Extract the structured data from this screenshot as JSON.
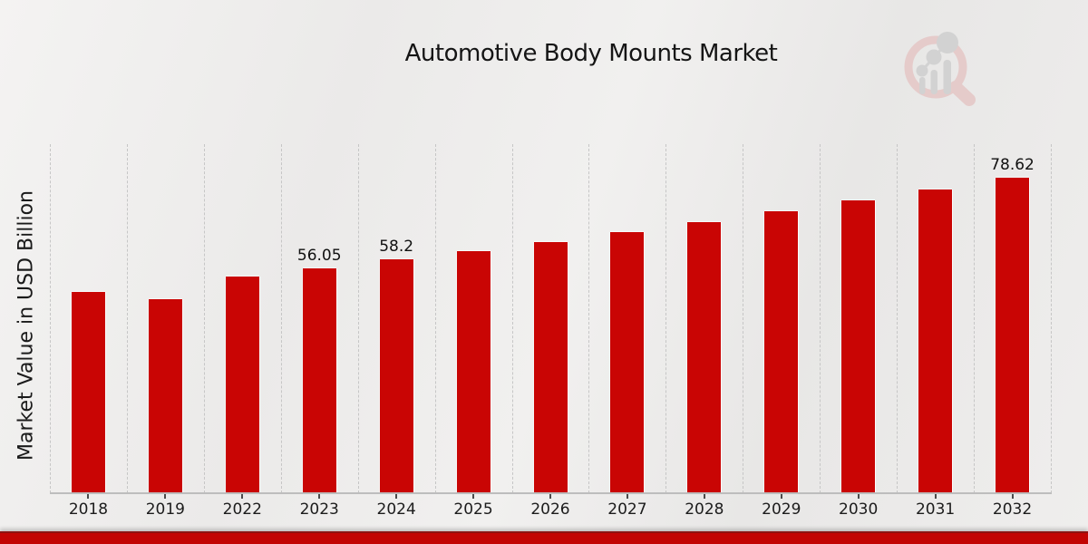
{
  "header": {
    "title": "Automotive Body Mounts Market"
  },
  "chart_data": {
    "type": "bar",
    "title": "Automotive Body Mounts Market",
    "xlabel": "",
    "ylabel": "Market Value in USD Billion",
    "categories": [
      "2018",
      "2019",
      "2022",
      "2023",
      "2024",
      "2025",
      "2026",
      "2027",
      "2028",
      "2029",
      "2030",
      "2031",
      "2032"
    ],
    "values": [
      50.1,
      48.3,
      54.0,
      56.05,
      58.2,
      60.4,
      62.7,
      65.1,
      67.6,
      70.2,
      72.9,
      75.7,
      78.62
    ],
    "bar_labels": [
      "",
      "",
      "",
      "56.05",
      "58.2",
      "",
      "",
      "",
      "",
      "",
      "",
      "",
      "78.62"
    ],
    "ylim": [
      0,
      87
    ],
    "grid": "vertical-dashed",
    "legend": "none",
    "bar_color": "#c90504"
  },
  "colors": {
    "bar": "#c90504",
    "footer_band": "#c20503",
    "footer_band_edge": "#8d1412",
    "gridline": "#c6c6c6",
    "axis_line": "#bdbdbd",
    "background": "#eeedec",
    "logo_pink": "#e5cbca",
    "logo_gray": "#d2d2d2"
  }
}
